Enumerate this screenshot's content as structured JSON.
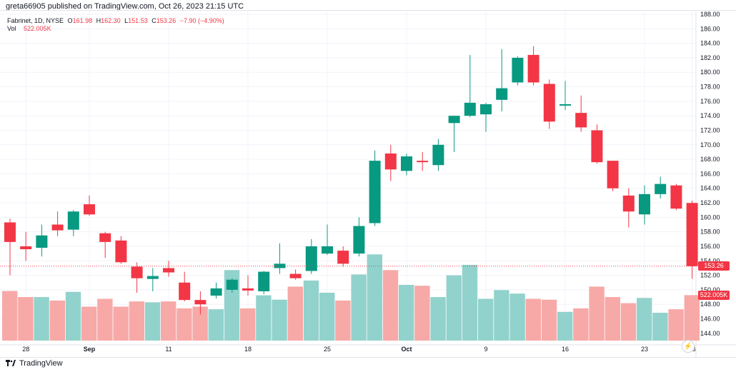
{
  "header": {
    "published": "greta66905 published on TradingView.com, Oct 26, 2023 21:15 UTC"
  },
  "legend": {
    "symbol": "Fabrinet, 1D, NYSE",
    "o_key": "O",
    "o_val": "161.98",
    "h_key": "H",
    "h_val": "162.30",
    "l_key": "L",
    "l_val": "151.53",
    "c_key": "C",
    "c_val": "153.26",
    "change": "−7.90 (−4.90%)",
    "vol_label": "Vol",
    "vol_val": "522.005K"
  },
  "last_price_tag": "153.26",
  "last_volume_tag": "522.005K",
  "footer": {
    "brand": "TradingView"
  },
  "colors": {
    "up": "#089981",
    "down": "#f23645",
    "up_vol": "#92d2cc",
    "down_vol": "#f7a9a7"
  },
  "chart_data": {
    "type": "candlestick",
    "title": "Fabrinet, 1D, NYSE",
    "ylim": [
      143,
      188
    ],
    "y_ticks": [
      "188.00",
      "186.00",
      "184.00",
      "182.00",
      "180.00",
      "178.00",
      "176.00",
      "174.00",
      "172.00",
      "170.00",
      "168.00",
      "166.00",
      "164.00",
      "162.00",
      "160.00",
      "158.00",
      "156.00",
      "154.00",
      "152.00",
      "150.00",
      "148.00",
      "146.00",
      "144.00"
    ],
    "x_ticks": [
      {
        "label": "28",
        "index": 1
      },
      {
        "label": "Sep",
        "index": 5
      },
      {
        "label": "11",
        "index": 10
      },
      {
        "label": "18",
        "index": 15
      },
      {
        "label": "25",
        "index": 20
      },
      {
        "label": "Oct",
        "index": 25
      },
      {
        "label": "9",
        "index": 30
      },
      {
        "label": "16",
        "index": 35
      },
      {
        "label": "23",
        "index": 40
      },
      {
        "label": "26",
        "index": 43
      }
    ],
    "volume_max": 1.05,
    "candles": [
      {
        "o": 159.3,
        "h": 159.8,
        "l": 152.0,
        "c": 156.6,
        "v": 0.57
      },
      {
        "o": 156.0,
        "h": 158.0,
        "l": 154.0,
        "c": 155.6,
        "v": 0.5
      },
      {
        "o": 155.8,
        "h": 159.0,
        "l": 154.6,
        "c": 157.5,
        "v": 0.5
      },
      {
        "o": 159.0,
        "h": 160.8,
        "l": 157.4,
        "c": 158.2,
        "v": 0.46
      },
      {
        "o": 158.3,
        "h": 161.0,
        "l": 157.4,
        "c": 160.8,
        "v": 0.56
      },
      {
        "o": 161.8,
        "h": 163.0,
        "l": 160.2,
        "c": 160.4,
        "v": 0.39
      },
      {
        "o": 157.8,
        "h": 158.0,
        "l": 154.4,
        "c": 156.6,
        "v": 0.48
      },
      {
        "o": 156.8,
        "h": 157.4,
        "l": 153.6,
        "c": 153.8,
        "v": 0.39
      },
      {
        "o": 153.2,
        "h": 153.8,
        "l": 149.6,
        "c": 151.6,
        "v": 0.45
      },
      {
        "o": 151.5,
        "h": 153.0,
        "l": 149.8,
        "c": 151.9,
        "v": 0.44
      },
      {
        "o": 153.0,
        "h": 154.0,
        "l": 151.8,
        "c": 152.4,
        "v": 0.45
      },
      {
        "o": 151.0,
        "h": 152.5,
        "l": 148.4,
        "c": 148.6,
        "v": 0.37
      },
      {
        "o": 148.6,
        "h": 149.8,
        "l": 146.6,
        "c": 148.0,
        "v": 0.39
      },
      {
        "o": 149.2,
        "h": 151.0,
        "l": 148.8,
        "c": 150.2,
        "v": 0.36
      },
      {
        "o": 150.0,
        "h": 151.6,
        "l": 149.6,
        "c": 151.4,
        "v": 0.81
      },
      {
        "o": 150.2,
        "h": 152.0,
        "l": 149.2,
        "c": 149.9,
        "v": 0.37
      },
      {
        "o": 149.8,
        "h": 152.6,
        "l": 149.4,
        "c": 152.5,
        "v": 0.52
      },
      {
        "o": 153.0,
        "h": 156.4,
        "l": 152.2,
        "c": 153.6,
        "v": 0.47
      },
      {
        "o": 152.2,
        "h": 152.8,
        "l": 151.4,
        "c": 151.6,
        "v": 0.62
      },
      {
        "o": 152.6,
        "h": 157.0,
        "l": 152.2,
        "c": 156.0,
        "v": 0.69
      },
      {
        "o": 155.0,
        "h": 159.0,
        "l": 154.8,
        "c": 156.0,
        "v": 0.55
      },
      {
        "o": 155.4,
        "h": 156.0,
        "l": 153.2,
        "c": 153.6,
        "v": 0.46
      },
      {
        "o": 155.0,
        "h": 160.0,
        "l": 154.6,
        "c": 158.8,
        "v": 0.76
      },
      {
        "o": 159.2,
        "h": 169.2,
        "l": 158.8,
        "c": 167.8,
        "v": 0.99
      },
      {
        "o": 168.8,
        "h": 170.0,
        "l": 165.0,
        "c": 166.6,
        "v": 0.81
      },
      {
        "o": 166.4,
        "h": 168.8,
        "l": 165.8,
        "c": 168.4,
        "v": 0.64
      },
      {
        "o": 167.8,
        "h": 169.0,
        "l": 166.4,
        "c": 167.6,
        "v": 0.63
      },
      {
        "o": 167.2,
        "h": 170.8,
        "l": 166.4,
        "c": 170.0,
        "v": 0.5
      },
      {
        "o": 173.0,
        "h": 174.0,
        "l": 169.0,
        "c": 174.0,
        "v": 0.75
      },
      {
        "o": 174.0,
        "h": 182.4,
        "l": 173.8,
        "c": 175.8,
        "v": 0.87
      },
      {
        "o": 174.2,
        "h": 175.8,
        "l": 171.8,
        "c": 175.6,
        "v": 0.48
      },
      {
        "o": 176.2,
        "h": 183.2,
        "l": 174.6,
        "c": 177.8,
        "v": 0.58
      },
      {
        "o": 178.6,
        "h": 182.2,
        "l": 178.2,
        "c": 182.0,
        "v": 0.54
      },
      {
        "o": 182.4,
        "h": 183.6,
        "l": 178.2,
        "c": 178.6,
        "v": 0.48
      },
      {
        "o": 178.4,
        "h": 179.0,
        "l": 172.2,
        "c": 173.2,
        "v": 0.47
      },
      {
        "o": 175.4,
        "h": 178.8,
        "l": 174.8,
        "c": 175.6,
        "v": 0.33
      },
      {
        "o": 174.4,
        "h": 176.8,
        "l": 171.8,
        "c": 172.4,
        "v": 0.37
      },
      {
        "o": 172.0,
        "h": 172.8,
        "l": 167.4,
        "c": 167.6,
        "v": 0.62
      },
      {
        "o": 167.8,
        "h": 167.8,
        "l": 163.6,
        "c": 164.0,
        "v": 0.5
      },
      {
        "o": 163.0,
        "h": 164.0,
        "l": 158.6,
        "c": 160.8,
        "v": 0.43
      },
      {
        "o": 160.4,
        "h": 164.4,
        "l": 159.0,
        "c": 163.2,
        "v": 0.49
      },
      {
        "o": 163.2,
        "h": 165.6,
        "l": 162.6,
        "c": 164.6,
        "v": 0.32
      },
      {
        "o": 164.4,
        "h": 164.6,
        "l": 161.0,
        "c": 161.2,
        "v": 0.36
      },
      {
        "o": 161.98,
        "h": 162.3,
        "l": 151.53,
        "c": 153.26,
        "v": 0.522
      }
    ]
  }
}
